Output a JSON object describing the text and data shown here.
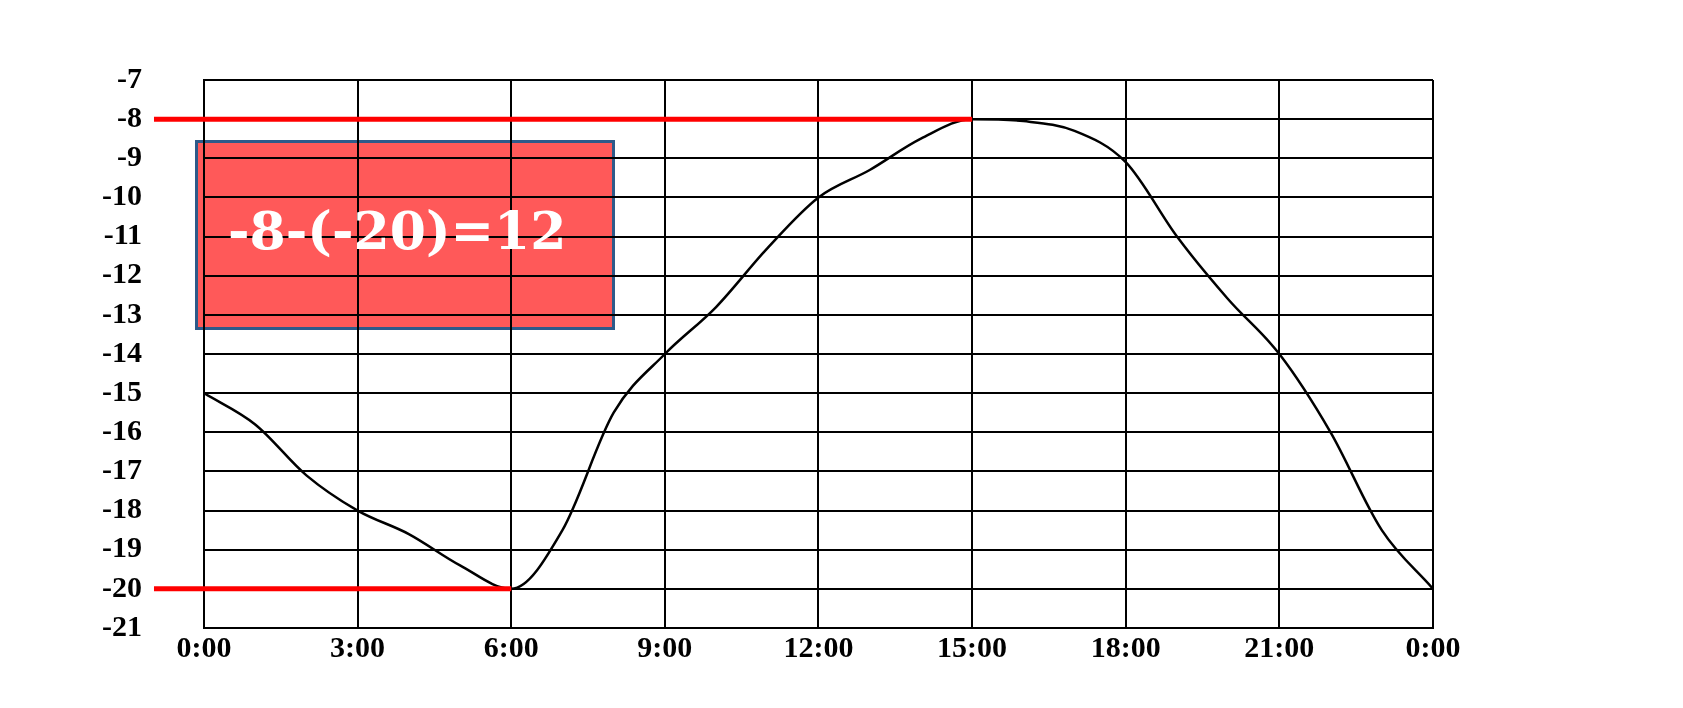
{
  "chart_data": {
    "type": "line",
    "x": [
      0,
      1,
      2,
      3,
      4,
      5,
      6,
      7,
      8,
      9,
      10,
      11,
      12,
      13,
      14,
      15,
      16,
      17,
      18,
      19,
      20,
      21,
      22,
      23,
      24
    ],
    "series": [
      {
        "color": "#000000",
        "values": [
          -15,
          -15.8,
          -17.1,
          -18,
          -18.6,
          -19.4,
          -20,
          -18.5,
          -15.5,
          -14,
          -12.8,
          -11.3,
          -10,
          -9.3,
          -8.5,
          -8,
          -8.05,
          -8.3,
          -9.1,
          -11,
          -12.6,
          -14,
          -16,
          -18.5,
          -20
        ]
      }
    ],
    "xlim": [
      0,
      24
    ],
    "xticks": [
      {
        "value": 0,
        "label": "0:00"
      },
      {
        "value": 3,
        "label": "3:00"
      },
      {
        "value": 6,
        "label": "6:00"
      },
      {
        "value": 9,
        "label": "9:00"
      },
      {
        "value": 12,
        "label": "12:00"
      },
      {
        "value": 15,
        "label": "15:00"
      },
      {
        "value": 18,
        "label": "18:00"
      },
      {
        "value": 21,
        "label": "21:00"
      },
      {
        "value": 24,
        "label": "0:00"
      }
    ],
    "ylim": [
      -21,
      -7
    ],
    "yticks": [
      -21,
      -20,
      -19,
      -18,
      -17,
      -16,
      -15,
      -14,
      -13,
      -12,
      -11,
      -10,
      -9,
      -8,
      -7
    ],
    "ref_lines": [
      {
        "axis": "y",
        "value": -8,
        "color": "#ff0000"
      },
      {
        "axis": "y",
        "value": -20,
        "color": "#ff0000"
      }
    ],
    "annotations": [
      "-8-(-20)=12"
    ],
    "grid": true,
    "legend": false,
    "marker": "none",
    "line_style": "solid"
  }
}
